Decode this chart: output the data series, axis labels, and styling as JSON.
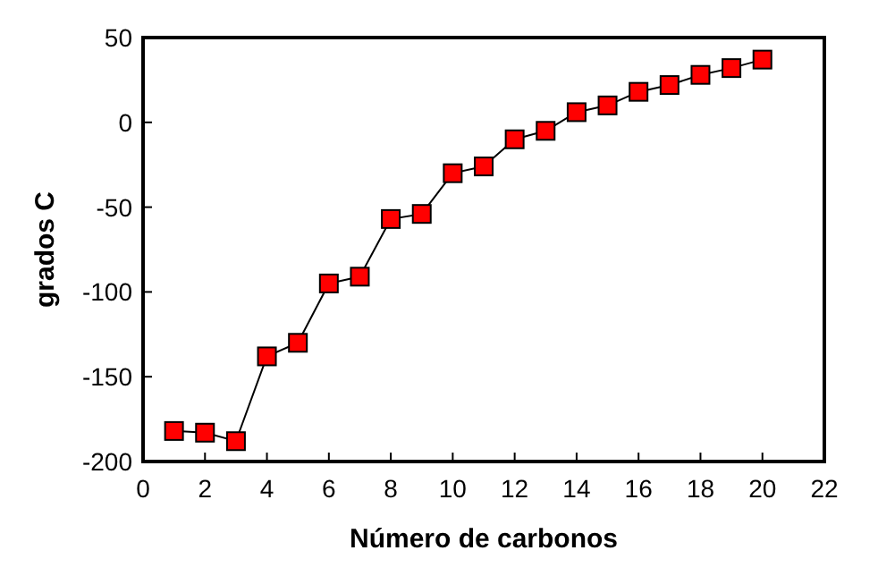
{
  "chart_data": {
    "type": "line",
    "xlabel": "Número de carbonos",
    "ylabel": "grados C",
    "x": [
      1,
      2,
      3,
      4,
      5,
      6,
      7,
      8,
      9,
      10,
      11,
      12,
      13,
      14,
      15,
      16,
      17,
      18,
      19,
      20
    ],
    "series": [
      {
        "color": "#ff0000",
        "values": [
          -182,
          -183,
          -188,
          -138,
          -130,
          -95,
          -91,
          -57,
          -54,
          -30,
          -26,
          -10,
          -5,
          6,
          10,
          18,
          22,
          28,
          32,
          37
        ]
      }
    ],
    "xlim": [
      0,
      22
    ],
    "xticks": [
      0,
      2,
      4,
      6,
      8,
      10,
      12,
      14,
      16,
      18,
      20,
      22
    ],
    "ylim": [
      -200,
      50
    ],
    "yticks": [
      -200,
      -150,
      -100,
      -50,
      0,
      50
    ],
    "marker": "square",
    "line_style": "solid"
  }
}
